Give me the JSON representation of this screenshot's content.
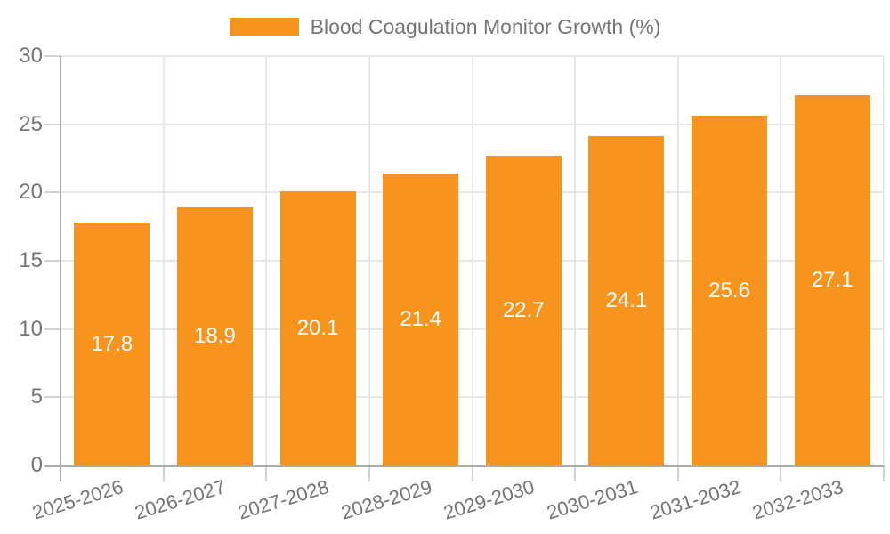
{
  "legend": {
    "series_label": "Blood Coagulation Monitor Growth (%)"
  },
  "chart_data": {
    "type": "bar",
    "title": "Blood Coagulation Monitor Growth (%)",
    "xlabel": "",
    "ylabel": "",
    "categories": [
      "2025-2026",
      "2026-2027",
      "2027-2028",
      "2028-2029",
      "2029-2030",
      "2030-2031",
      "2031-2032",
      "2032-2033"
    ],
    "series": [
      {
        "name": "Blood Coagulation Monitor Growth (%)",
        "values": [
          17.8,
          18.9,
          20.1,
          21.4,
          22.7,
          24.1,
          25.6,
          27.1
        ]
      }
    ],
    "value_labels": [
      "17.8",
      "18.9",
      "20.1",
      "21.4",
      "22.7",
      "24.1",
      "25.6",
      "27.1"
    ],
    "ylim": [
      0,
      30
    ],
    "yticks": [
      0,
      5,
      10,
      15,
      20,
      25,
      30
    ],
    "ytick_labels": [
      "0",
      "5",
      "10",
      "15",
      "20",
      "25",
      "30"
    ],
    "grid": true,
    "legend_position": "top",
    "x_tick_rotation_deg": -17,
    "colors": {
      "bar": "#F7941E",
      "grid": "#E7E7E7",
      "axis": "#ABABAB",
      "tick": "#D2D2D2",
      "axis_text": "#757575",
      "value_text": "#FFFFFF",
      "background": "#FFFFFF"
    }
  }
}
